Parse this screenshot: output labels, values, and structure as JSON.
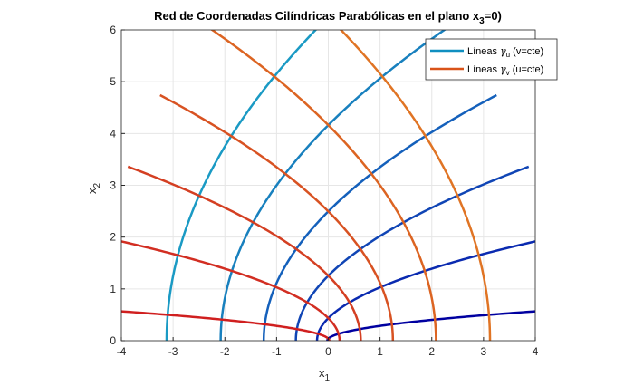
{
  "chart_data": {
    "type": "line",
    "title": "Red de Coordenadas Cilíndricas Parabólicas en el plano x",
    "title_sub": "3",
    "title_end": "=0)",
    "xlabel": "x",
    "xlabel_sub": "1",
    "ylabel": "x",
    "ylabel_sub": "2",
    "xlim": [
      -4,
      4
    ],
    "ylim": [
      0,
      6
    ],
    "xticks": [
      "-4",
      "-3",
      "-2",
      "-1",
      "0",
      "1",
      "2",
      "3",
      "4"
    ],
    "yticks": [
      "0",
      "1",
      "2",
      "3",
      "4",
      "5",
      "6"
    ],
    "grid": true,
    "legend_placement": "top-right",
    "mapping": "x1 = (u^2 - v^2)/2, x2 = u*v",
    "parameter_values": [
      0.2,
      0.66,
      1.12,
      1.58,
      2.04,
      2.5
    ],
    "parameter_range": [
      0,
      3
    ],
    "series": [
      {
        "name": "Líneas γu (v=cte)",
        "legend_text": "Líneas ",
        "greek": "γ",
        "sub": "u",
        "tail": " (v=cte)",
        "legend_color": "#0f8fc0",
        "colors": [
          "#0000a0",
          "#0a2ab0",
          "#1045b5",
          "#1460bb",
          "#1880be",
          "#1a9ac4"
        ]
      },
      {
        "name": "Líneas γv (u=cte)",
        "legend_text": "Líneas ",
        "greek": "γ",
        "sub": "v",
        "tail": " (u=cte)",
        "legend_color": "#d95319",
        "colors": [
          "#d01f1f",
          "#d22e22",
          "#d43f22",
          "#d85222",
          "#dc6422",
          "#e07424"
        ]
      }
    ]
  }
}
